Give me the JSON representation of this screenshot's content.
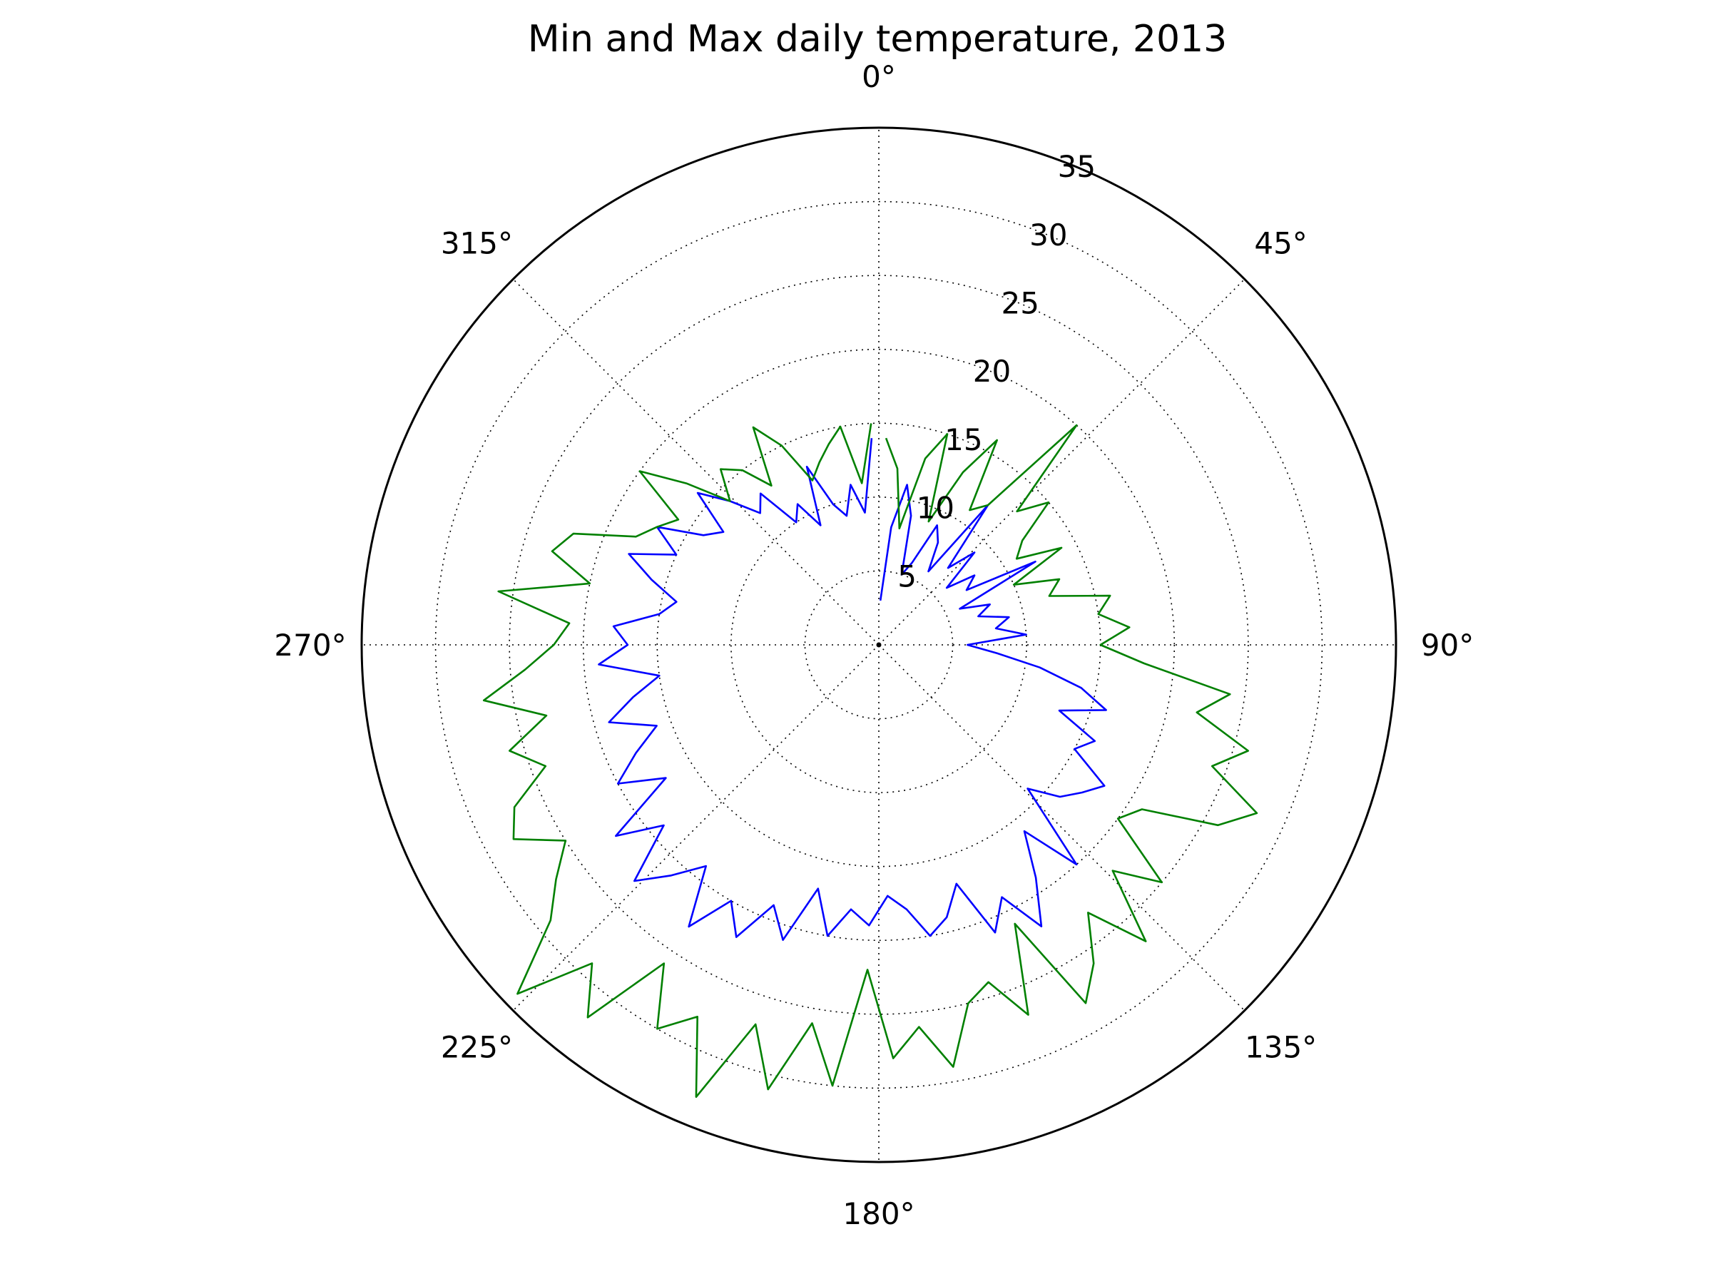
{
  "chart_data": {
    "type": "line",
    "coordinate_system": "polar",
    "title": "Min and Max daily temperature, 2013",
    "theta_direction": "clockwise",
    "theta_zero_location": "top",
    "theta_ticks": [
      "0°",
      "45°",
      "90°",
      "135°",
      "180°",
      "225°",
      "270°",
      "315°"
    ],
    "r_ticks": [
      "5",
      "10",
      "15",
      "20",
      "25",
      "30",
      "35"
    ],
    "r_tick_values": [
      5,
      10,
      15,
      20,
      25,
      30,
      35
    ],
    "r_range": [
      0,
      35
    ],
    "grid": true,
    "series": [
      {
        "color": "#0000ff",
        "angles_deg": [
          2,
          6,
          10,
          14,
          18,
          22,
          26,
          30,
          34,
          38,
          42,
          46,
          50,
          54,
          58,
          62,
          66,
          70,
          74,
          78,
          82,
          86,
          90,
          94,
          98,
          102,
          106,
          110,
          114,
          118,
          122,
          126,
          130,
          134,
          138,
          142,
          146,
          150,
          154,
          158,
          162,
          166,
          170,
          174,
          178,
          182,
          186,
          190,
          194,
          198,
          202,
          206,
          210,
          214,
          218,
          222,
          226,
          230,
          234,
          238,
          242,
          246,
          250,
          254,
          258,
          262,
          266,
          270,
          274,
          278,
          282,
          286,
          290,
          294,
          298,
          302,
          306,
          310,
          314,
          318,
          322,
          326,
          330,
          334,
          338,
          342,
          346,
          350,
          354,
          358
        ],
        "values": [
          3,
          8,
          11,
          9,
          5,
          6,
          9,
          8,
          6,
          12,
          7,
          9,
          6,
          8,
          7,
          12,
          6,
          8,
          7,
          9,
          8,
          10,
          6,
          8,
          11,
          14,
          16,
          13,
          16,
          15,
          18,
          17,
          16,
          14,
          20,
          16,
          19,
          22,
          19,
          21,
          17,
          19,
          20,
          18,
          17,
          19,
          18,
          20,
          17,
          21,
          19,
          22,
          20,
          23,
          19,
          21,
          23,
          19,
          22,
          17,
          20,
          18,
          16,
          19,
          17,
          15,
          19,
          17,
          18,
          15,
          14,
          16,
          18,
          15,
          17,
          14,
          13,
          16,
          14,
          12,
          13,
          10,
          11,
          9,
          13,
          10,
          9,
          11,
          9,
          14
        ]
      },
      {
        "color": "#008000",
        "angles_deg": [
          2,
          6,
          10,
          14,
          18,
          22,
          26,
          30,
          34,
          38,
          42,
          46,
          50,
          54,
          58,
          62,
          66,
          70,
          74,
          78,
          82,
          86,
          90,
          94,
          98,
          102,
          106,
          110,
          114,
          118,
          122,
          126,
          130,
          134,
          138,
          142,
          146,
          150,
          154,
          158,
          162,
          166,
          170,
          174,
          178,
          182,
          186,
          190,
          194,
          198,
          202,
          206,
          210,
          214,
          218,
          222,
          226,
          230,
          234,
          238,
          242,
          246,
          250,
          254,
          258,
          262,
          266,
          270,
          274,
          278,
          282,
          286,
          290,
          294,
          298,
          302,
          306,
          310,
          314,
          318,
          322,
          326,
          330,
          334,
          338,
          342,
          346,
          350,
          354,
          358
        ],
        "values": [
          14,
          12,
          8,
          13,
          15,
          9,
          13,
          16,
          11,
          12,
          20,
          13,
          15,
          12,
          11,
          14,
          10,
          13,
          12,
          16,
          15,
          17,
          15,
          18,
          24,
          22,
          26,
          24,
          28,
          26,
          21,
          20,
          25,
          22,
          27,
          23,
          26,
          28,
          21,
          27,
          24,
          25,
          29,
          26,
          28,
          22,
          30,
          26,
          31,
          27,
          33,
          28,
          30,
          26,
          32,
          29,
          34,
          29,
          27,
          25,
          28,
          27,
          24,
          26,
          23,
          27,
          24,
          22,
          21,
          26,
          20,
          23,
          22,
          18,
          17,
          16,
          20,
          17,
          14,
          16,
          15,
          13,
          17,
          15,
          12,
          13,
          14,
          15,
          11,
          15
        ]
      }
    ]
  }
}
